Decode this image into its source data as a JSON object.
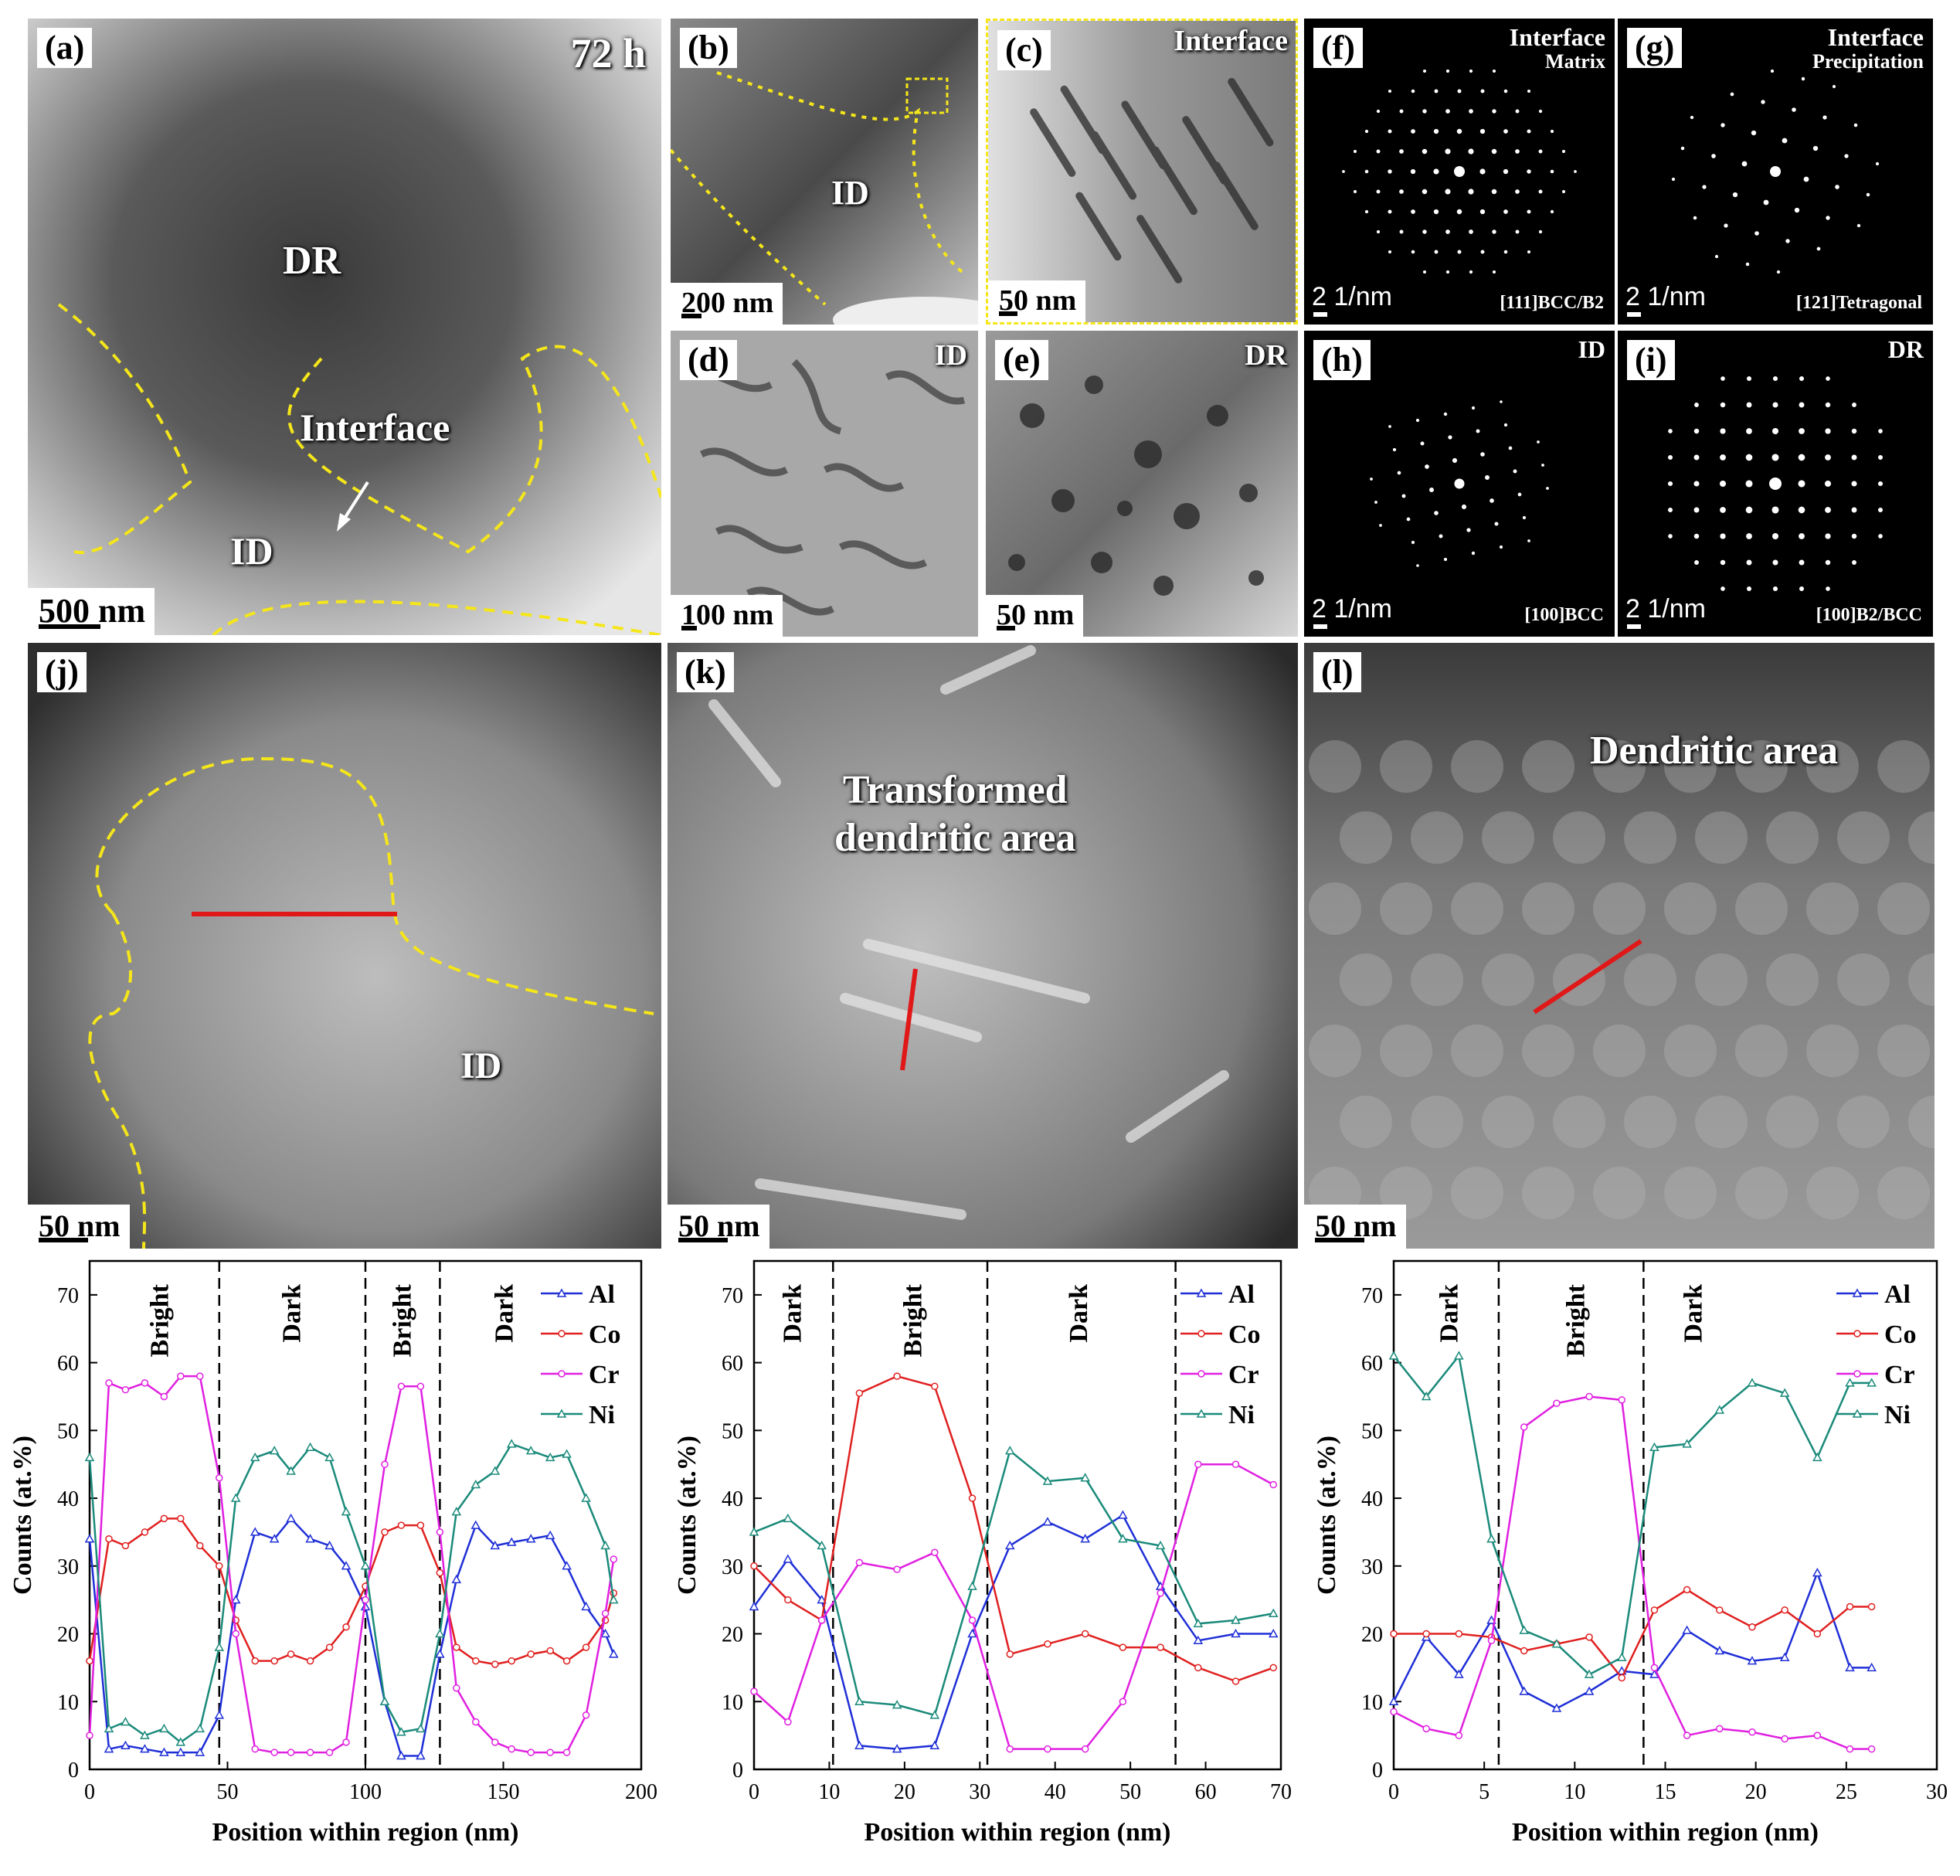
{
  "panels": {
    "a": {
      "letter": "(a)",
      "time": "72 h",
      "dr": "DR",
      "id": "ID",
      "interface": "Interface",
      "scale": "500 nm"
    },
    "b": {
      "letter": "(b)",
      "id": "ID",
      "scale": "200 nm"
    },
    "c": {
      "letter": "(c)",
      "title": "Interface",
      "scale": "50 nm"
    },
    "d": {
      "letter": "(d)",
      "title": "ID",
      "scale": "100 nm"
    },
    "e": {
      "letter": "(e)",
      "title": "DR",
      "scale": "50 nm"
    },
    "f": {
      "letter": "(f)",
      "title1": "Interface",
      "title2": "Matrix",
      "scale": "2 1/nm",
      "zone": "[111]BCC/B2"
    },
    "g": {
      "letter": "(g)",
      "title1": "Interface",
      "title2": "Precipitation",
      "scale": "2 1/nm",
      "zone": "[121]Tetragonal"
    },
    "h": {
      "letter": "(h)",
      "title1": "ID",
      "scale": "2 1/nm",
      "zone": "[100]BCC"
    },
    "i": {
      "letter": "(i)",
      "title1": "DR",
      "scale": "2 1/nm",
      "zone": "[100]B2/BCC"
    },
    "j": {
      "letter": "(j)",
      "id": "ID",
      "scale": "50 nm"
    },
    "k": {
      "letter": "(k)",
      "label1": "Transformed",
      "label2": "dendritic area",
      "scale": "50 nm"
    },
    "l": {
      "letter": "(l)",
      "label": "Dendritic area",
      "scale": "50 nm"
    }
  },
  "colors": {
    "Al": "#1f2fd6",
    "Co": "#e02020",
    "Cr": "#e020e0",
    "Ni": "#1a8a7a",
    "dashed_outline": "#f5e61a",
    "line_scan": "#e01818"
  },
  "chart_data": [
    {
      "type": "line",
      "xlabel": "Position within region (nm)",
      "ylabel": "Counts (at.%)",
      "xlim": [
        0,
        200
      ],
      "ylim": [
        0,
        75
      ],
      "xticks": [
        0,
        50,
        100,
        150,
        200
      ],
      "yticks": [
        0,
        10,
        20,
        30,
        40,
        50,
        60,
        70
      ],
      "boundaries": [
        47,
        100,
        127
      ],
      "regions": [
        {
          "label": "Bright",
          "x": 25
        },
        {
          "label": "Dark",
          "x": 73
        },
        {
          "label": "Bright",
          "x": 113
        },
        {
          "label": "Dark",
          "x": 150
        }
      ],
      "x": [
        0,
        7,
        13,
        20,
        27,
        33,
        40,
        47,
        53,
        60,
        67,
        73,
        80,
        87,
        93,
        100,
        107,
        113,
        120,
        127,
        133,
        140,
        147,
        153,
        160,
        167,
        173,
        180,
        187,
        190
      ],
      "series": [
        {
          "name": "Al",
          "values": [
            34,
            3,
            3.5,
            3,
            2.5,
            2.5,
            2.5,
            8,
            25,
            35,
            34,
            37,
            34,
            33,
            30,
            24,
            10,
            2,
            2,
            17,
            28,
            36,
            33,
            33.5,
            34,
            34.5,
            30,
            24,
            20,
            17
          ]
        },
        {
          "name": "Co",
          "values": [
            16,
            34,
            33,
            35,
            37,
            37,
            33,
            30,
            22,
            16,
            16,
            17,
            16,
            18,
            21,
            27,
            35,
            36,
            36,
            29,
            18,
            16,
            15.5,
            16,
            17,
            17.5,
            16,
            18,
            22,
            26
          ]
        },
        {
          "name": "Cr",
          "values": [
            5,
            57,
            56,
            57,
            55,
            58,
            58,
            43,
            20,
            3,
            2.5,
            2.5,
            2.5,
            2.5,
            4,
            25,
            45,
            56.5,
            56.5,
            35,
            12,
            7,
            4,
            3,
            2.5,
            2.5,
            2.5,
            8,
            23,
            31
          ]
        },
        {
          "name": "Ni",
          "values": [
            46,
            6,
            7,
            5,
            6,
            4,
            6,
            18,
            40,
            46,
            47,
            44,
            47.5,
            46,
            38,
            30,
            10,
            5.5,
            6,
            20,
            38,
            42,
            44,
            48,
            47,
            46,
            46.5,
            40,
            33,
            25
          ]
        }
      ]
    },
    {
      "type": "line",
      "xlabel": "Position within region (nm)",
      "ylabel": "Counts (at.%)",
      "xlim": [
        0,
        70
      ],
      "ylim": [
        0,
        75
      ],
      "xticks": [
        0,
        10,
        20,
        30,
        40,
        50,
        60,
        70
      ],
      "yticks": [
        0,
        10,
        20,
        30,
        40,
        50,
        60,
        70
      ],
      "boundaries": [
        10.5,
        31,
        56
      ],
      "regions": [
        {
          "label": "Dark",
          "x": 5
        },
        {
          "label": "Bright",
          "x": 21
        },
        {
          "label": "Dark",
          "x": 43
        }
      ],
      "x": [
        0,
        4.5,
        9,
        14,
        19,
        24,
        29,
        34,
        39,
        44,
        49,
        54,
        59,
        64,
        69
      ],
      "series": [
        {
          "name": "Al",
          "values": [
            24,
            31,
            25,
            3.5,
            3,
            3.5,
            20,
            33,
            36.5,
            34,
            37.5,
            27,
            19,
            20,
            20
          ]
        },
        {
          "name": "Co",
          "values": [
            30,
            25,
            22,
            55.5,
            58,
            56.5,
            40,
            17,
            18.5,
            20,
            18,
            18,
            15,
            13,
            15
          ]
        },
        {
          "name": "Cr",
          "values": [
            11.5,
            7,
            22,
            30.5,
            29.5,
            32,
            22,
            3,
            3,
            3,
            10,
            26,
            45,
            45,
            42
          ]
        },
        {
          "name": "Ni",
          "values": [
            35,
            37,
            33,
            10,
            9.5,
            8,
            27,
            47,
            42.5,
            43,
            34,
            33,
            21.5,
            22,
            23
          ]
        }
      ]
    },
    {
      "type": "line",
      "xlabel": "Position within region (nm)",
      "ylabel": "Counts (at.%)",
      "xlim": [
        0,
        30
      ],
      "ylim": [
        0,
        75
      ],
      "xticks": [
        0,
        5,
        10,
        15,
        20,
        25,
        30
      ],
      "yticks": [
        0,
        10,
        20,
        30,
        40,
        50,
        60,
        70
      ],
      "boundaries": [
        5.8,
        13.8
      ],
      "regions": [
        {
          "label": "Dark",
          "x": 3
        },
        {
          "label": "Bright",
          "x": 10
        },
        {
          "label": "Dark",
          "x": 16.5
        }
      ],
      "x": [
        0,
        1.8,
        3.6,
        5.4,
        7.2,
        9.0,
        10.8,
        12.6,
        14.4,
        16.2,
        18.0,
        19.8,
        21.6,
        23.4,
        25.2,
        26.4
      ],
      "series": [
        {
          "name": "Al",
          "values": [
            10,
            19.5,
            14,
            22,
            11.5,
            9,
            11.5,
            14.5,
            14,
            20.5,
            17.5,
            16,
            16.5,
            29,
            15,
            15
          ]
        },
        {
          "name": "Co",
          "values": [
            20,
            20,
            20,
            19.5,
            17.5,
            18.5,
            19.5,
            13.5,
            23.5,
            26.5,
            23.5,
            21,
            23.5,
            20,
            24,
            24
          ]
        },
        {
          "name": "Cr",
          "values": [
            8.5,
            6,
            5,
            19,
            50.5,
            54,
            55,
            54.5,
            15,
            5,
            6,
            5.5,
            4.5,
            5,
            3,
            3
          ]
        },
        {
          "name": "Ni",
          "values": [
            61,
            55,
            61,
            34,
            20.5,
            18.5,
            14,
            16.5,
            47.5,
            48,
            53,
            57,
            55.5,
            46,
            57,
            57
          ]
        }
      ]
    }
  ]
}
